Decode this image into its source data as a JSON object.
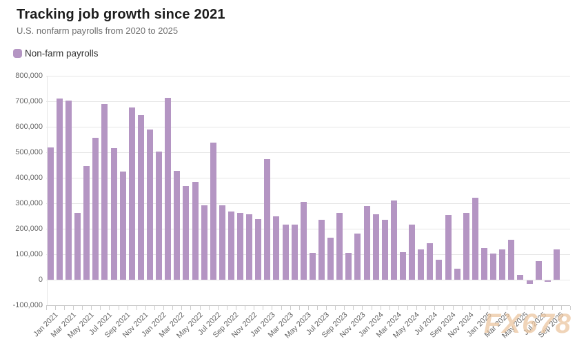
{
  "header": {
    "title": "Tracking job growth since 2021",
    "subtitle": "U.S. nonfarm payrolls from 2020 to 2025"
  },
  "legend": {
    "label": "Non-farm payrolls",
    "swatch_color": "#b495c3"
  },
  "watermark": {
    "text": "FX678"
  },
  "colors": {
    "bar": "#b495c3",
    "grid": "#e6e6e6",
    "axis_line": "#c9c9c9",
    "axis_label": "#666666"
  },
  "chart_data": {
    "type": "bar",
    "title": "Tracking job growth since 2021",
    "subtitle": "U.S. nonfarm payrolls from 2020 to 2025",
    "series_name": "Non-farm payrolls",
    "legend_position": "top-left",
    "grid": true,
    "ylim": [
      -100000,
      800000
    ],
    "y_tick_step": 100000,
    "y_tick_labels": [
      "800,000",
      "700,000",
      "600,000",
      "500,000",
      "400,000",
      "300,000",
      "200,000",
      "100,000",
      "0",
      "-100,000"
    ],
    "x_tick_label_every": 2,
    "categories": [
      "Jan 2021",
      "Feb 2021",
      "Mar 2021",
      "Apr 2021",
      "May 2021",
      "Jun 2021",
      "Jul 2021",
      "Aug 2021",
      "Sep 2021",
      "Oct 2021",
      "Nov 2021",
      "Dec 2021",
      "Jan 2022",
      "Feb 2022",
      "Mar 2022",
      "Apr 2022",
      "May 2022",
      "Jun 2022",
      "Jul 2022",
      "Aug 2022",
      "Sep 2022",
      "Oct 2022",
      "Nov 2022",
      "Dec 2022",
      "Jan 2023",
      "Feb 2023",
      "Mar 2023",
      "Apr 2023",
      "May 2023",
      "Jun 2023",
      "Jul 2023",
      "Aug 2023",
      "Sep 2023",
      "Oct 2023",
      "Nov 2023",
      "Dec 2023",
      "Jan 2024",
      "Feb 2024",
      "Mar 2024",
      "Apr 2024",
      "May 2024",
      "Jun 2024",
      "Jul 2024",
      "Aug 2024",
      "Sep 2024",
      "Oct 2024",
      "Nov 2024",
      "Dec 2024",
      "Jan 2025",
      "Feb 2025",
      "Mar 2025",
      "Apr 2025",
      "May 2025",
      "Jun 2025",
      "Jul 2025",
      "Aug 2025",
      "Sep 2025"
    ],
    "values": [
      520000,
      710000,
      704000,
      263000,
      447000,
      557000,
      689000,
      517000,
      424000,
      677000,
      647000,
      588000,
      504000,
      714000,
      426000,
      368000,
      384000,
      293000,
      537000,
      292000,
      269000,
      263000,
      256000,
      239000,
      472000,
      248000,
      217000,
      217000,
      306000,
      105000,
      236000,
      165000,
      262000,
      105000,
      182000,
      290000,
      256000,
      236000,
      310000,
      108000,
      216000,
      118000,
      144000,
      78000,
      255000,
      44000,
      261000,
      323000,
      125000,
      102000,
      120000,
      158000,
      19000,
      -13000,
      72000,
      -4000,
      119000
    ]
  }
}
